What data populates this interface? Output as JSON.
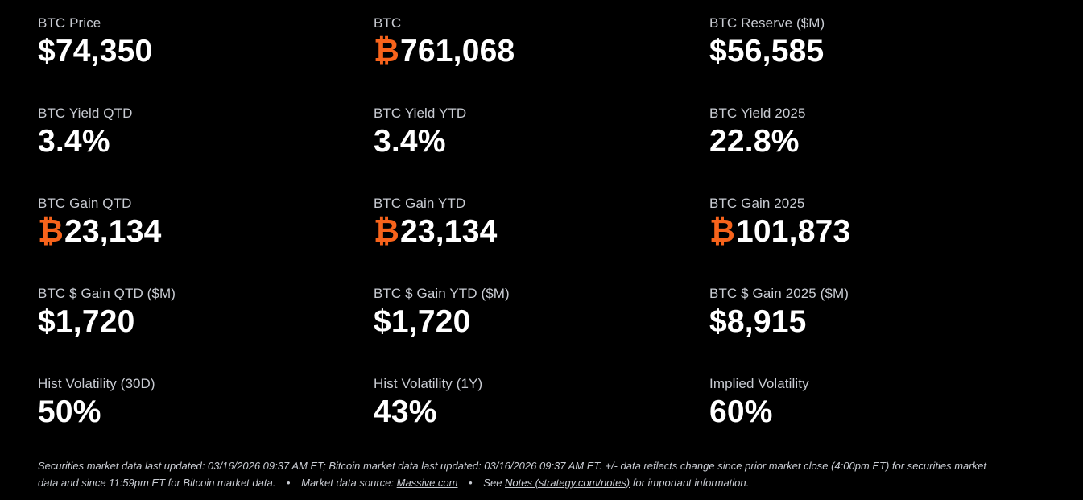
{
  "colors": {
    "background": "#000000",
    "label": "#c9ccd3",
    "value": "#ffffff",
    "btc_accent": "#f7631b"
  },
  "metrics": [
    {
      "label": "BTC Price",
      "symbol": "",
      "value": "$74,350"
    },
    {
      "label": "BTC",
      "symbol": "₿",
      "value": "761,068"
    },
    {
      "label": "BTC Reserve ($M)",
      "symbol": "",
      "value": "$56,585"
    },
    {
      "label": "BTC Yield QTD",
      "symbol": "",
      "value": "3.4%"
    },
    {
      "label": "BTC Yield YTD",
      "symbol": "",
      "value": "3.4%"
    },
    {
      "label": "BTC Yield 2025",
      "symbol": "",
      "value": "22.8%"
    },
    {
      "label": "BTC Gain QTD",
      "symbol": "₿",
      "value": "23,134"
    },
    {
      "label": "BTC Gain YTD",
      "symbol": "₿",
      "value": "23,134"
    },
    {
      "label": "BTC Gain 2025",
      "symbol": "₿",
      "value": "101,873"
    },
    {
      "label": "BTC $ Gain QTD ($M)",
      "symbol": "",
      "value": "$1,720"
    },
    {
      "label": "BTC $ Gain YTD ($M)",
      "symbol": "",
      "value": "$1,720"
    },
    {
      "label": "BTC $ Gain 2025 ($M)",
      "symbol": "",
      "value": "$8,915"
    },
    {
      "label": "Hist Volatility (30D)",
      "symbol": "",
      "value": "50%"
    },
    {
      "label": "Hist Volatility (1Y)",
      "symbol": "",
      "value": "43%"
    },
    {
      "label": "Implied Volatility",
      "symbol": "",
      "value": "60%"
    }
  ],
  "footnote": {
    "updated_text": "Securities market data last updated: 03/16/2026 09:37 AM ET; Bitcoin market data last updated: 03/16/2026 09:37 AM ET. +/- data reflects change since prior market close (4:00pm ET) for securities market data and since 11:59pm ET for Bitcoin market data.",
    "bullet": "•",
    "source_prefix": "Market data source: ",
    "source_link": "Massive.com",
    "notes_prefix": "See ",
    "notes_link": "Notes (strategy.com/notes)",
    "notes_suffix": " for important information."
  }
}
